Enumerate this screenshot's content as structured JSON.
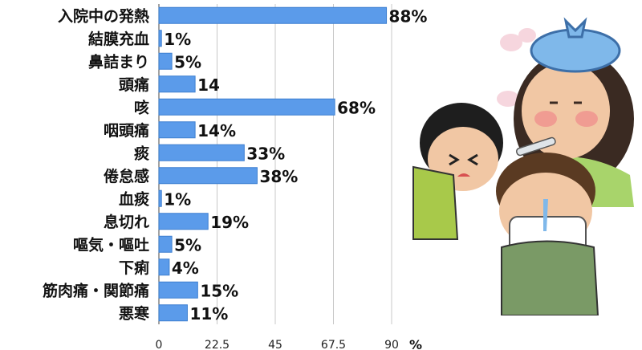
{
  "chart_data": {
    "type": "bar",
    "orientation": "horizontal",
    "categories": [
      "入院中の発熱",
      "結膜充血",
      "鼻詰まり",
      "頭痛",
      "咳",
      "咽頭痛",
      "痰",
      "倦怠感",
      "血痰",
      "息切れ",
      "嘔気・嘔吐",
      "下痢",
      "筋肉痛・関節痛",
      "悪寒"
    ],
    "values": [
      88,
      1,
      5,
      14,
      68,
      14,
      33,
      38,
      1,
      19,
      5,
      4,
      15,
      11
    ],
    "value_labels": [
      "88%",
      "1%",
      "5%",
      "14",
      "68%",
      "14%",
      "33%",
      "38%",
      "1%",
      "19%",
      "5%",
      "4%",
      "15%",
      "11%"
    ],
    "xlim": [
      0,
      90
    ],
    "xticks": [
      "0",
      "22.5",
      "45",
      "67.5",
      "90"
    ],
    "x_unit": "%",
    "grid": true,
    "bar_color": "#5b9bea",
    "bar_edge": "#3d7fd0"
  },
  "illustration": {
    "icon": "sick-family-icon"
  }
}
